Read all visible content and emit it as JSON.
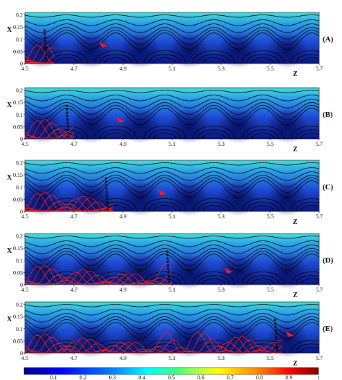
{
  "chart_data": {
    "type": "heatmap",
    "title": "",
    "panels": [
      {
        "label": "(A)",
        "tracer_z": 4.58,
        "arrow_z": 4.82,
        "arrow_x": 0.075,
        "particle_extent_z": [
          4.5,
          4.62
        ],
        "xlabel": "Z",
        "ylabel": "X"
      },
      {
        "label": "(B)",
        "tracer_z": 4.67,
        "arrow_z": 4.89,
        "arrow_x": 0.075,
        "particle_extent_z": [
          4.5,
          4.7
        ],
        "xlabel": "Z",
        "ylabel": "X"
      },
      {
        "label": "(C)",
        "tracer_z": 4.83,
        "arrow_z": 5.06,
        "arrow_x": 0.075,
        "particle_extent_z": [
          4.5,
          4.86
        ],
        "xlabel": "Z",
        "ylabel": "X"
      },
      {
        "label": "(D)",
        "tracer_z": 5.08,
        "arrow_z": 5.33,
        "arrow_x": 0.055,
        "particle_extent_z": [
          4.5,
          5.1
        ],
        "xlabel": "Z",
        "ylabel": "X"
      },
      {
        "label": "(E)",
        "tracer_z": 5.52,
        "arrow_z": 5.58,
        "arrow_x": 0.075,
        "particle_extent_z": [
          4.5,
          5.55
        ],
        "xlabel": "Z",
        "ylabel": "X"
      }
    ],
    "x_ticks": [
      "4.5",
      "4.7",
      "4.9",
      "5.1",
      "5.3",
      "5.5",
      "5.7"
    ],
    "x_tick_values": [
      4.5,
      4.7,
      4.9,
      5.1,
      5.3,
      5.5,
      5.7
    ],
    "y_ticks": [
      "0",
      "0.05",
      "0.1",
      "0.15",
      "0.2"
    ],
    "y_tick_values": [
      0,
      0.05,
      0.1,
      0.15,
      0.2
    ],
    "xlim": [
      4.5,
      5.7
    ],
    "ylim": [
      0,
      0.21
    ],
    "wave_period_z": 0.2,
    "wave_crest_z": [
      4.67,
      4.87,
      5.07,
      5.27,
      5.47,
      5.67
    ],
    "streamline_mean_x": [
      0.195,
      0.168,
      0.145,
      0.125,
      0.108,
      0.092
    ],
    "streamline_amplitude_x": [
      0.005,
      0.012,
      0.018,
      0.024,
      0.03,
      0.034
    ],
    "colorbar": {
      "ticks": [
        "0.1",
        "0.2",
        "0.3",
        "0.4",
        "0.5",
        "0.6",
        "0.7",
        "0.8",
        "0.9",
        "1"
      ],
      "tick_values": [
        0.1,
        0.2,
        0.3,
        0.4,
        0.5,
        0.6,
        0.7,
        0.8,
        0.9,
        1.0
      ],
      "range": [
        0,
        1
      ],
      "colors": [
        "#00008f",
        "#0000ff",
        "#0080ff",
        "#00ffff",
        "#80ff80",
        "#ffff00",
        "#ff8000",
        "#ff0000",
        "#800000"
      ]
    },
    "colors": {
      "streamline": "#000000",
      "particle_path": "#ff2020",
      "arrow": "#ff1a1a",
      "background_low": "#0b1a8c",
      "background_high": "#3ec9e3"
    }
  }
}
